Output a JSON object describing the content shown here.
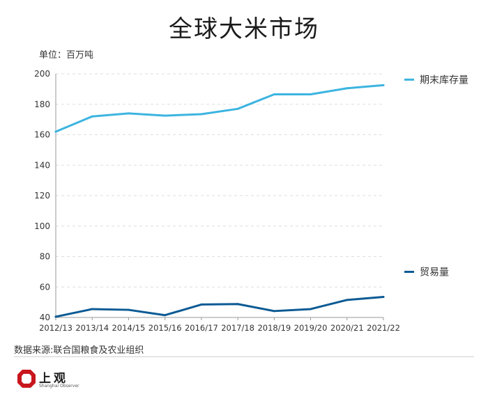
{
  "title": "全球大米市场",
  "unit_label": "单位：百万吨",
  "source": "数据来源:联合国粮食及农业组织",
  "logo": {
    "name": "上观",
    "subtitle": "Shanghai Observer",
    "color": "#c8161d"
  },
  "chart_data": {
    "type": "line",
    "categories": [
      "2012/13",
      "2013/14",
      "2014/15",
      "2015/16",
      "2016/17",
      "2017/18",
      "2018/19",
      "2019/20",
      "2020/21",
      "2021/22"
    ],
    "series": [
      {
        "name": "期末库存量",
        "color": "#3cb4e0",
        "values": [
          162,
          172,
          174,
          172.5,
          173.5,
          177,
          186.5,
          186.5,
          190.5,
          192.5
        ]
      },
      {
        "name": "贸易量",
        "color": "#0b5a94",
        "values": [
          40.5,
          45.5,
          45,
          41.5,
          48.5,
          48.8,
          44.2,
          45.5,
          51.5,
          53.5
        ]
      }
    ],
    "yticks": [
      40,
      60,
      80,
      100,
      120,
      140,
      160,
      180,
      200
    ],
    "ylim": [
      40,
      200
    ],
    "grid": true,
    "legend": "right"
  }
}
